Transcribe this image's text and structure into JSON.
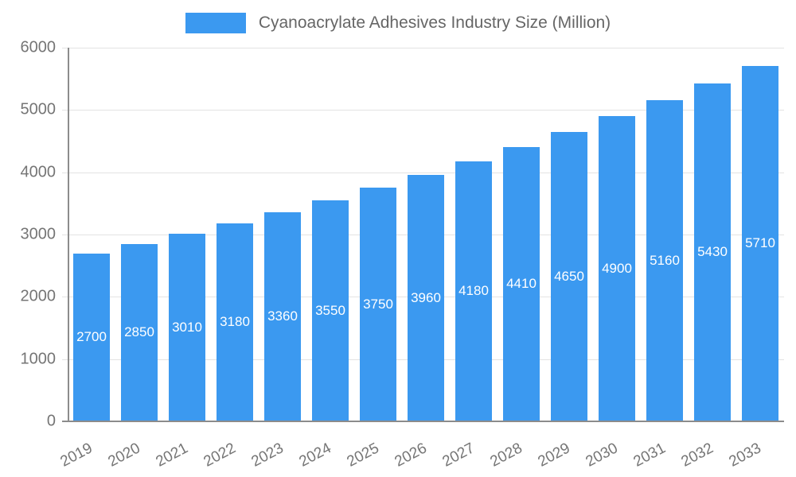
{
  "chart_data": {
    "type": "bar",
    "title": "Cyanoacrylate Adhesives Industry Size (Million)",
    "categories": [
      "2019",
      "2020",
      "2021",
      "2022",
      "2023",
      "2024",
      "2025",
      "2026",
      "2027",
      "2028",
      "2029",
      "2030",
      "2031",
      "2032",
      "2033"
    ],
    "values": [
      2700,
      2850,
      3010,
      3180,
      3360,
      3550,
      3750,
      3960,
      4180,
      4410,
      4650,
      4900,
      5160,
      5430,
      5710
    ],
    "yticks": [
      0,
      1000,
      2000,
      3000,
      4000,
      5000,
      6000
    ],
    "ylim": [
      0,
      6000
    ],
    "xlabel": "",
    "ylabel": "",
    "grid": true,
    "legend_position": "top",
    "colors": {
      "bar": "#3B99F0",
      "value_label": "#ffffff",
      "tick_text": "#757575",
      "title_text": "#666666",
      "gridline": "#e3e3e3",
      "axis_line": "#8c8c8c"
    }
  }
}
